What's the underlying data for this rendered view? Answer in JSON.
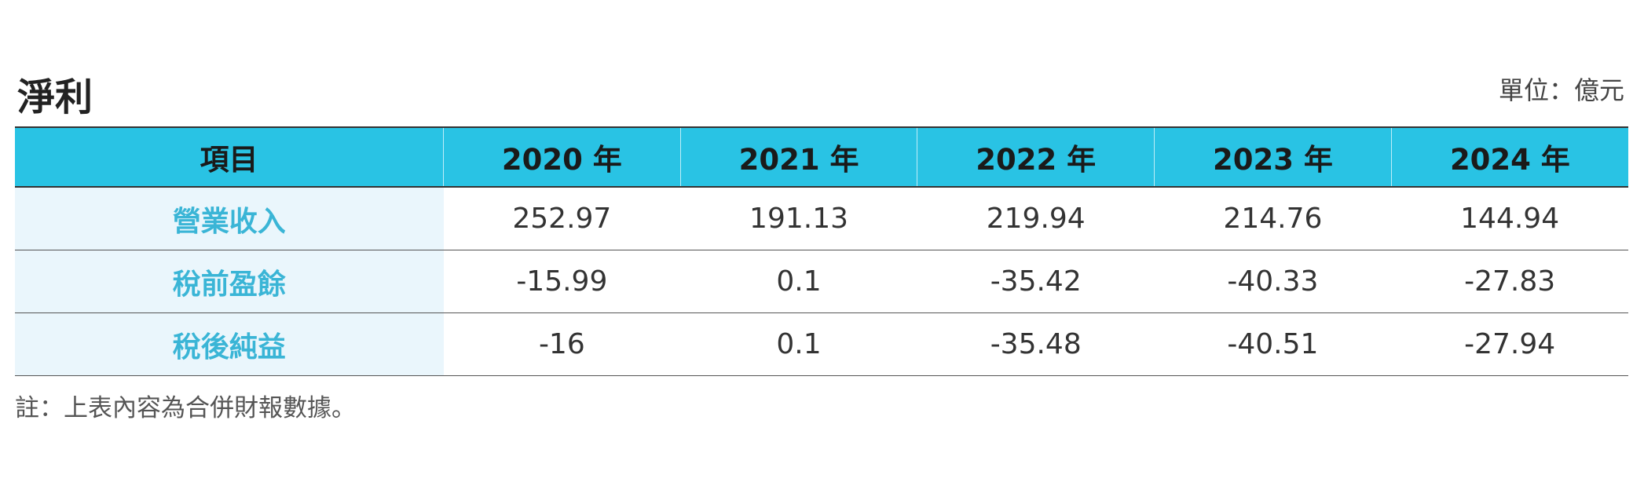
{
  "header": {
    "title": "淨利",
    "unit": "單位：億元"
  },
  "table": {
    "columns": [
      "項目",
      "2020 年",
      "2021 年",
      "2022 年",
      "2023 年",
      "2024 年"
    ],
    "rows": [
      [
        "營業收入",
        "252.97",
        "191.13",
        "219.94",
        "214.76",
        "144.94"
      ],
      [
        "稅前盈餘",
        "-15.99",
        "0.1",
        "-35.42",
        "-40.33",
        "-27.83"
      ],
      [
        "稅後純益",
        "-16",
        "0.1",
        "-35.48",
        "-40.51",
        "-27.94"
      ]
    ]
  },
  "note": "註：上表內容為合併財報數據。"
}
